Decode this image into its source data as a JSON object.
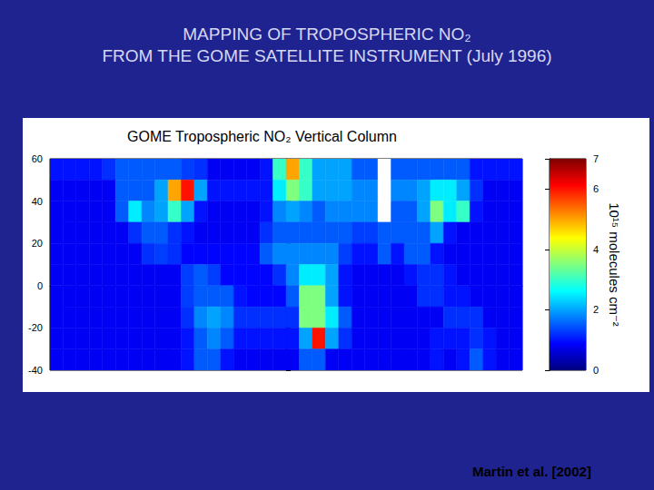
{
  "heading": [
    "MAPPING OF TROPOSPHERIC NO₂",
    "FROM THE GOME SATELLITE INSTRUMENT (July 1996)"
  ],
  "source": "Martin et al. [2002]",
  "chart_data": {
    "type": "heatmap",
    "title": "GOME Tropospheric NO₂ Vertical Column",
    "xlim": [
      -180,
      180
    ],
    "ylim": [
      -40,
      60
    ],
    "yticks": [
      -40,
      -20,
      0,
      20,
      40,
      60
    ],
    "tick_labels": "y",
    "grid": false,
    "cells": {
      "lon": [
        -175,
        -165,
        -155,
        -145,
        -135,
        -125,
        -115,
        -105,
        -95,
        -85,
        -75,
        -65,
        -55,
        -45,
        -35,
        -25,
        -15,
        -5,
        5,
        15,
        25,
        35,
        45,
        55,
        65,
        75,
        85,
        95,
        105,
        115,
        125,
        135,
        145,
        155,
        165,
        175
      ],
      "lat": [
        55,
        45,
        35,
        25,
        15,
        5,
        -5,
        -15,
        -25,
        -35
      ],
      "values": [
        [
          1,
          1,
          1,
          1,
          1.2,
          1.5,
          1.5,
          1.5,
          1.5,
          1.5,
          1.3,
          1.2,
          0.8,
          0.8,
          0.8,
          0.8,
          1,
          3,
          5,
          3,
          2,
          2,
          2,
          1.5,
          1.5,
          null,
          1.5,
          1.5,
          1.5,
          1.5,
          1.5,
          1.5,
          1,
          1,
          1,
          1
        ],
        [
          0.8,
          0.8,
          0.8,
          0.8,
          0.8,
          1.5,
          1.5,
          1.5,
          2,
          5,
          6,
          2,
          1,
          1,
          1,
          1,
          1,
          2.5,
          3.5,
          3,
          2,
          2,
          2,
          1.8,
          1.8,
          null,
          1.8,
          1.8,
          2,
          2.5,
          2.5,
          2,
          1.2,
          0.8,
          0.8,
          0.8
        ],
        [
          0.8,
          0.8,
          0.8,
          0.8,
          0.8,
          1.5,
          2.5,
          1.8,
          2,
          3,
          2,
          1,
          0.8,
          0.8,
          0.8,
          0.8,
          1,
          1.8,
          2,
          1.8,
          1.5,
          1.8,
          1.8,
          1.8,
          1.8,
          null,
          1.5,
          1.5,
          2,
          3.5,
          2.5,
          3,
          1,
          0.8,
          0.8,
          0.8
        ],
        [
          0.8,
          0.8,
          0.8,
          0.8,
          0.8,
          0.8,
          1.2,
          1.5,
          1.5,
          1.2,
          1,
          0.8,
          0.8,
          0.8,
          0.8,
          0.8,
          1.2,
          1.5,
          1.5,
          1.5,
          1.5,
          1.5,
          1.5,
          1.3,
          1.3,
          1.5,
          1.5,
          1.5,
          1.5,
          2,
          1,
          0.8,
          0.8,
          0.8,
          0.8,
          0.8
        ],
        [
          0.8,
          0.8,
          0.8,
          0.8,
          0.8,
          0.8,
          0.8,
          1.2,
          1.3,
          1.2,
          0.9,
          0.9,
          0.9,
          0.9,
          0.9,
          0.9,
          1.5,
          1.8,
          1.8,
          1.8,
          1.8,
          1.8,
          1.3,
          1,
          1,
          1.5,
          1,
          1.5,
          1.5,
          1,
          0.8,
          0.8,
          0.8,
          0.8,
          0.8,
          0.8
        ],
        [
          0.8,
          0.8,
          0.8,
          0.8,
          0.8,
          0.8,
          0.8,
          0.8,
          0.8,
          0.8,
          1.3,
          1.5,
          1.3,
          0.9,
          0.9,
          0.9,
          0.9,
          1.2,
          1.8,
          2.5,
          2.5,
          2,
          1,
          0.8,
          0.8,
          0.8,
          0.8,
          1,
          1.2,
          1.2,
          1,
          0.8,
          0.8,
          0.8,
          0.8,
          0.8
        ],
        [
          0.8,
          0.8,
          0.8,
          0.8,
          0.8,
          0.8,
          0.8,
          0.8,
          0.8,
          0.8,
          1.3,
          1.5,
          1.5,
          1.5,
          1,
          0.9,
          0.9,
          0.9,
          1.5,
          3.5,
          3.5,
          2,
          1,
          0.8,
          0.8,
          0.8,
          0.8,
          0.8,
          1.2,
          1.2,
          1,
          1,
          0.8,
          0.8,
          0.8,
          0.8
        ],
        [
          0.8,
          0.8,
          0.8,
          0.8,
          0.8,
          0.8,
          0.8,
          0.8,
          0.8,
          0.8,
          1.2,
          1.8,
          2,
          1.8,
          1.2,
          1.2,
          1.2,
          1.2,
          1.2,
          3.5,
          3.5,
          2.5,
          1.5,
          0.8,
          0.8,
          0.8,
          0.8,
          0.8,
          0.8,
          0.8,
          1.2,
          1.2,
          1.2,
          0.8,
          0.8,
          0.8
        ],
        [
          0.8,
          0.8,
          0.8,
          0.8,
          0.8,
          0.8,
          0.8,
          0.8,
          0.8,
          0.8,
          1,
          1.5,
          1.8,
          1.5,
          1,
          1,
          1,
          1,
          1,
          2,
          6,
          2,
          1.2,
          0.8,
          0.8,
          0.8,
          0.8,
          0.8,
          0.8,
          1,
          1,
          1,
          1.2,
          1,
          0.8,
          0.8
        ],
        [
          0.8,
          0.8,
          0.8,
          0.8,
          0.8,
          0.8,
          0.8,
          0.8,
          0.8,
          0.8,
          1,
          1.5,
          1.5,
          1,
          0.8,
          0.8,
          0.8,
          0.8,
          0.8,
          1.5,
          1.5,
          0.8,
          0.8,
          0.8,
          0.8,
          0.8,
          0.8,
          0.8,
          0.8,
          1,
          0.8,
          1,
          1.5,
          1,
          0.8,
          0.8
        ]
      ]
    },
    "colorbar": {
      "range": [
        0,
        7
      ],
      "ticks": [
        0,
        2,
        4,
        6
      ],
      "label": "10¹⁵ molecules cm⁻²"
    }
  }
}
